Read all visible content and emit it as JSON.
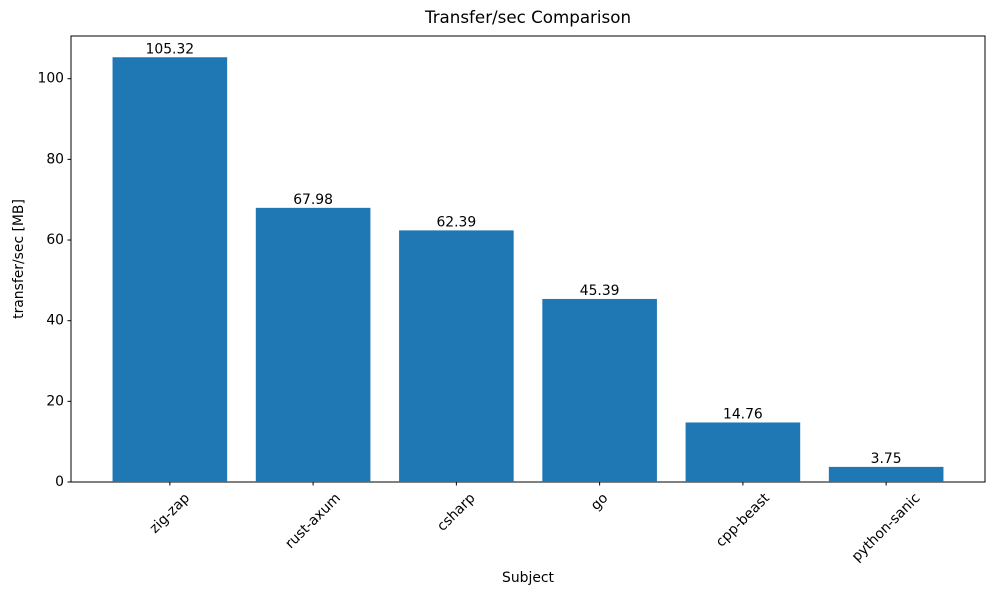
{
  "chart_data": {
    "type": "bar",
    "title": "Transfer/sec Comparison",
    "xlabel": "Subject",
    "ylabel": "transfer/sec [MB]",
    "categories": [
      "zig-zap",
      "rust-axum",
      "csharp",
      "go",
      "cpp-beast",
      "python-sanic"
    ],
    "values": [
      105.32,
      67.98,
      62.39,
      45.39,
      14.76,
      3.75
    ],
    "value_labels": [
      "105.32",
      "67.98",
      "62.39",
      "45.39",
      "14.76",
      "3.75"
    ],
    "bar_color": "#1f77b4",
    "ylim": [
      0,
      110.59
    ],
    "yticks": [
      0,
      20,
      40,
      60,
      80,
      100
    ],
    "grid": false,
    "legend_position": "none",
    "x_tick_rotation": 45,
    "background_color": "#ffffff"
  }
}
